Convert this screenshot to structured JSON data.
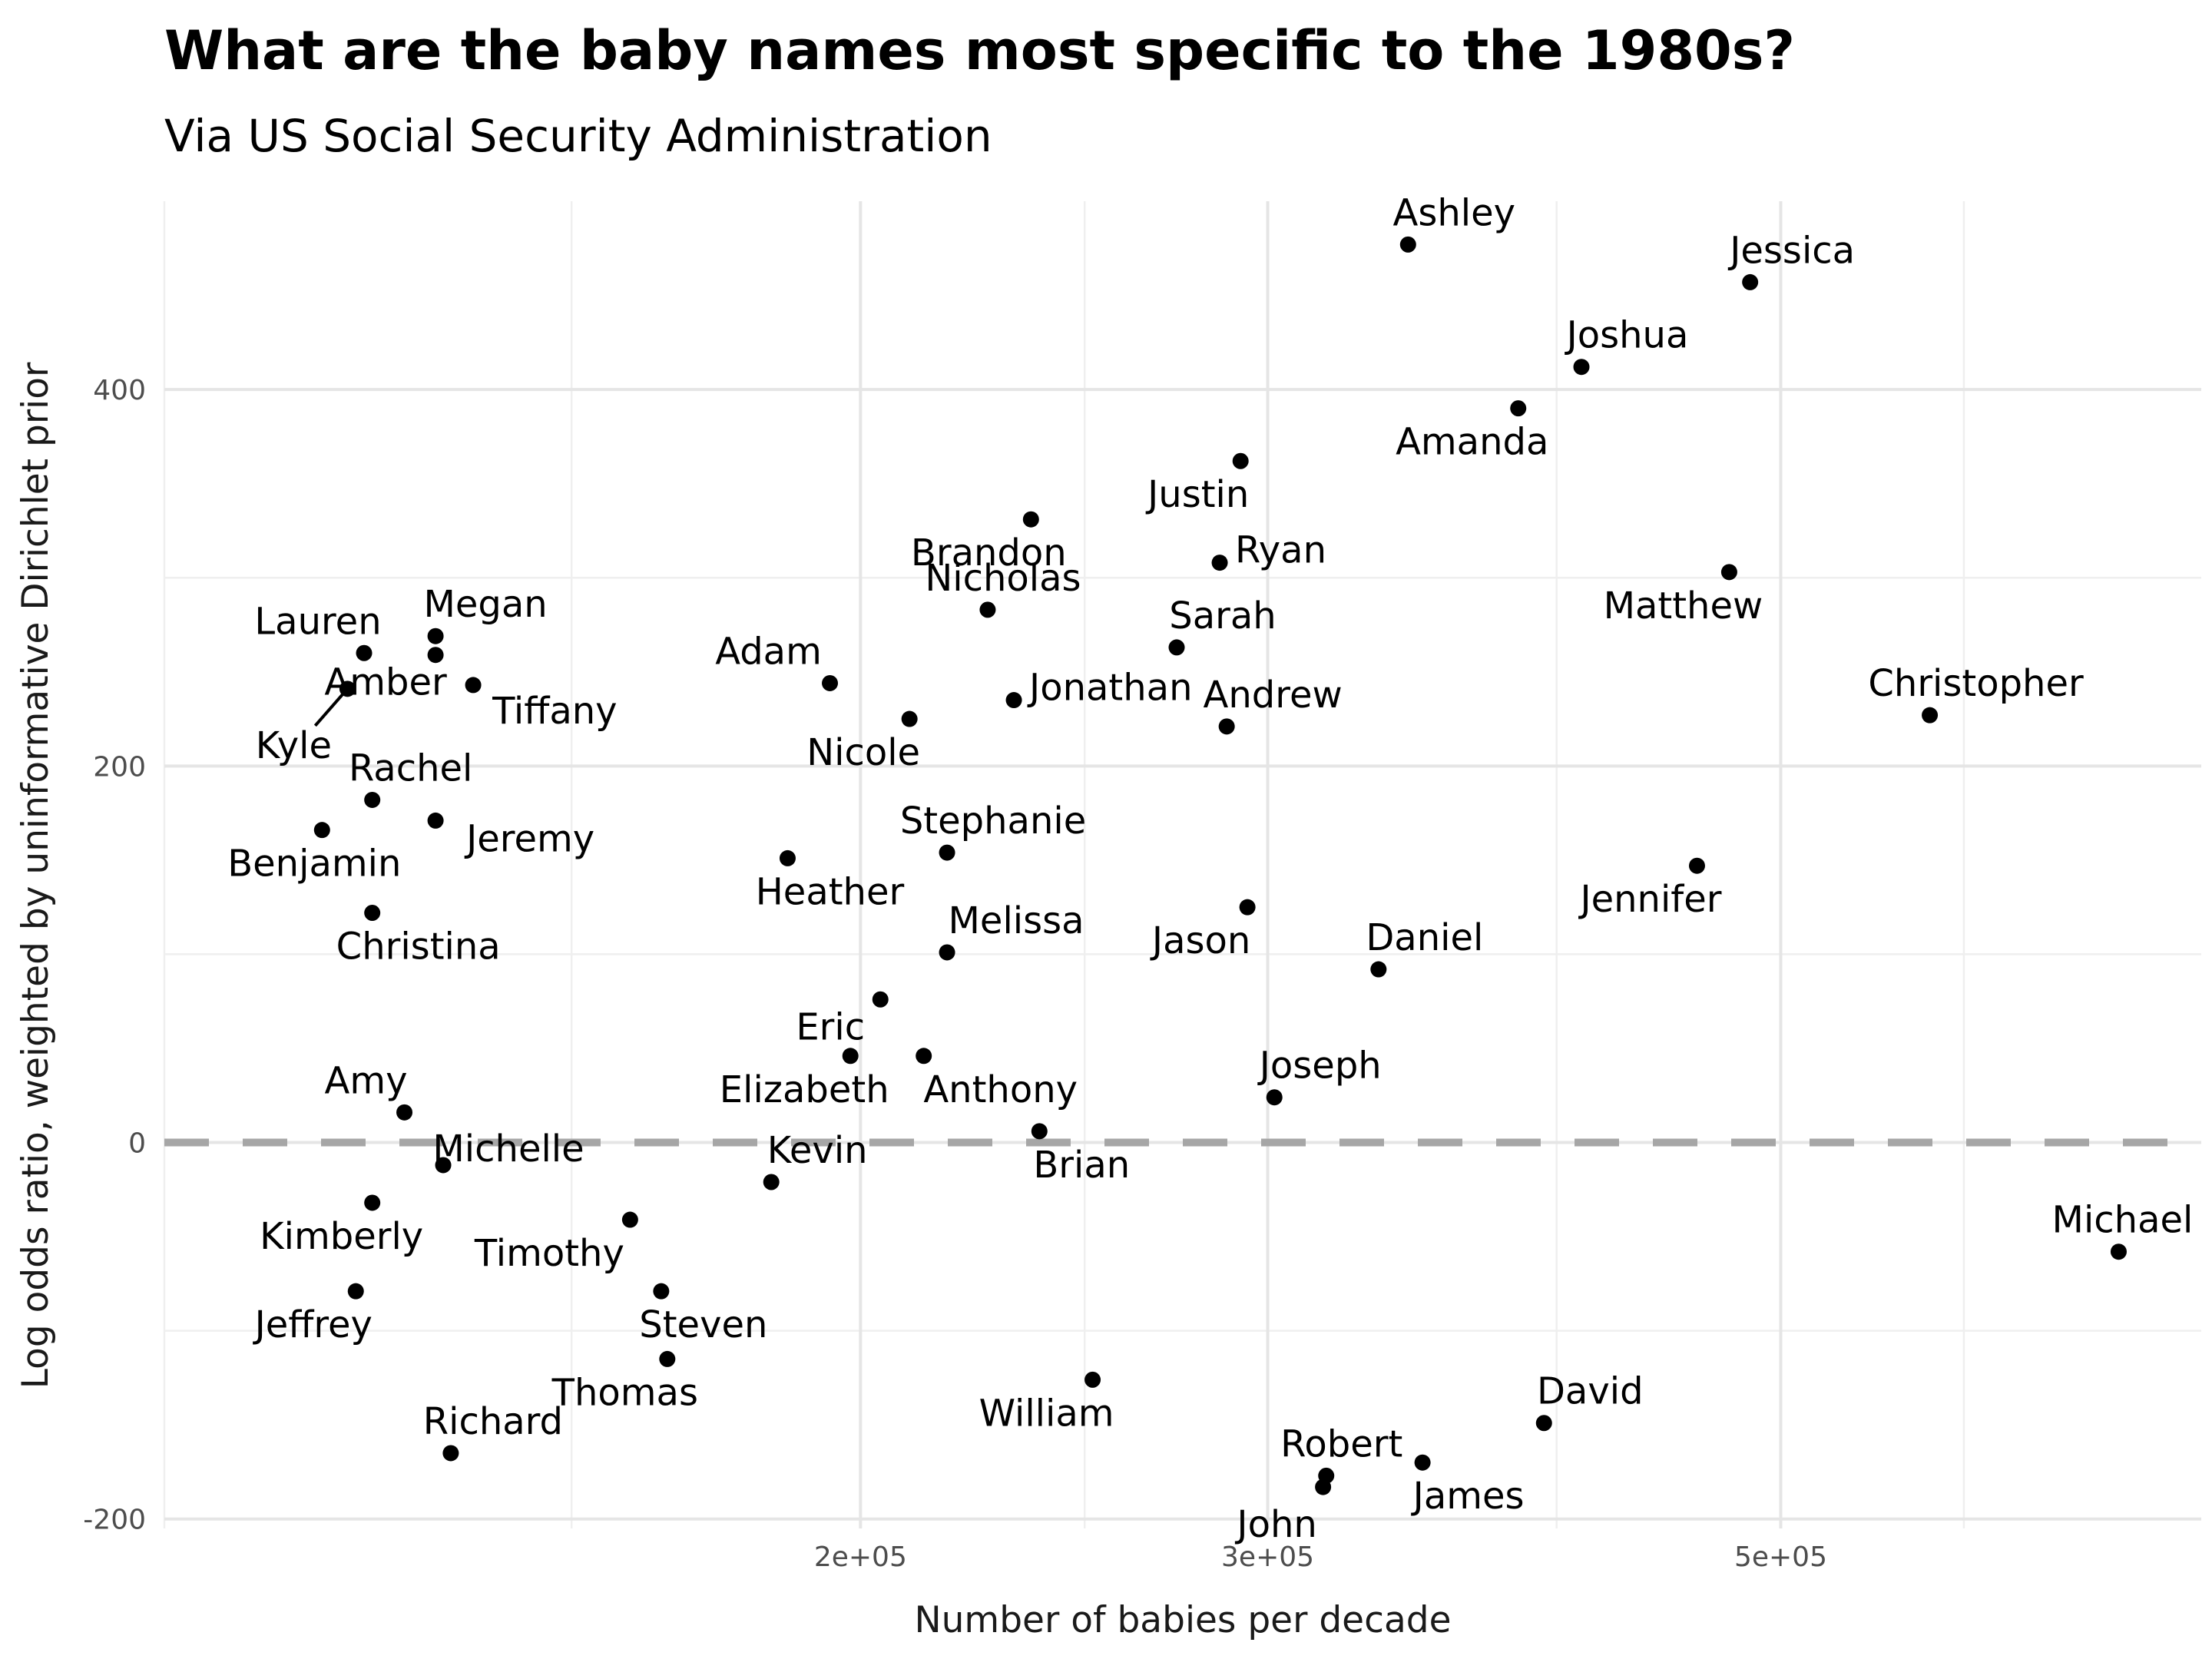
{
  "chart_data": {
    "type": "scatter",
    "title": "What are the baby names most specific to the 1980s?",
    "subtitle": "Via US Social Security Administration",
    "xlabel": "Number of babies per decade",
    "ylabel": "Log odds ratio, weighted by uninformative Dirichlet prior",
    "x_scale": "log10",
    "xlim": [
      100000,
      760000
    ],
    "ylim": [
      -205,
      500
    ],
    "x_ticks": [
      {
        "value": 200000,
        "label": "2e+05"
      },
      {
        "value": 300000,
        "label": "3e+05"
      },
      {
        "value": 500000,
        "label": "5e+05"
      }
    ],
    "y_ticks": [
      {
        "value": -200,
        "label": "-200"
      },
      {
        "value": 0,
        "label": "0"
      },
      {
        "value": 200,
        "label": "200"
      },
      {
        "value": 400,
        "label": "400"
      }
    ],
    "reference_line": {
      "y": 0,
      "style": "dashed",
      "color": "#a6a6a6"
    },
    "grid": true,
    "points": [
      {
        "name": "Ashley",
        "x": 345000,
        "y": 477
      },
      {
        "name": "Jessica",
        "x": 485000,
        "y": 457
      },
      {
        "name": "Joshua",
        "x": 410000,
        "y": 412
      },
      {
        "name": "Amanda",
        "x": 385000,
        "y": 390
      },
      {
        "name": "Justin",
        "x": 292000,
        "y": 362
      },
      {
        "name": "Brandon",
        "x": 237000,
        "y": 331
      },
      {
        "name": "Ryan",
        "x": 286000,
        "y": 308
      },
      {
        "name": "Matthew",
        "x": 475000,
        "y": 303
      },
      {
        "name": "Sarah",
        "x": 274000,
        "y": 263
      },
      {
        "name": "Lauren",
        "x": 122000,
        "y": 260
      },
      {
        "name": "Megan",
        "x": 131000,
        "y": 269
      },
      {
        "name": "Tiffany",
        "x": 136000,
        "y": 243
      },
      {
        "name": "Amber",
        "x": 131000,
        "y": 259
      },
      {
        "name": "Kyle",
        "x": 120000,
        "y": 241
      },
      {
        "name": "Adam",
        "x": 194000,
        "y": 244
      },
      {
        "name": "Nicholas",
        "x": 227000,
        "y": 283
      },
      {
        "name": "Jonathan",
        "x": 233000,
        "y": 235
      },
      {
        "name": "Nicole",
        "x": 210000,
        "y": 225
      },
      {
        "name": "Andrew",
        "x": 288000,
        "y": 221
      },
      {
        "name": "Christopher",
        "x": 580000,
        "y": 227
      },
      {
        "name": "Rachel",
        "x": 123000,
        "y": 182
      },
      {
        "name": "Jeremy",
        "x": 131000,
        "y": 171
      },
      {
        "name": "Benjamin",
        "x": 117000,
        "y": 166
      },
      {
        "name": "Stephanie",
        "x": 218000,
        "y": 154
      },
      {
        "name": "Heather",
        "x": 186000,
        "y": 151
      },
      {
        "name": "Jennifer",
        "x": 460000,
        "y": 147
      },
      {
        "name": "Christina",
        "x": 123000,
        "y": 122
      },
      {
        "name": "Jason",
        "x": 294000,
        "y": 125
      },
      {
        "name": "Melissa",
        "x": 218000,
        "y": 101
      },
      {
        "name": "Daniel",
        "x": 335000,
        "y": 92
      },
      {
        "name": "Eric",
        "x": 204000,
        "y": 76
      },
      {
        "name": "Elizabeth",
        "x": 198000,
        "y": 46
      },
      {
        "name": "Anthony",
        "x": 213000,
        "y": 46
      },
      {
        "name": "Joseph",
        "x": 302000,
        "y": 24
      },
      {
        "name": "Amy",
        "x": 127000,
        "y": 16
      },
      {
        "name": "Brian",
        "x": 239000,
        "y": 6
      },
      {
        "name": "Michelle",
        "x": 132000,
        "y": -12
      },
      {
        "name": "Kevin",
        "x": 183000,
        "y": -21
      },
      {
        "name": "Kimberly",
        "x": 123000,
        "y": -32
      },
      {
        "name": "Timothy",
        "x": 159000,
        "y": -41
      },
      {
        "name": "Jeffrey",
        "x": 121000,
        "y": -79
      },
      {
        "name": "Steven",
        "x": 164000,
        "y": -79
      },
      {
        "name": "Thomas",
        "x": 165000,
        "y": -115
      },
      {
        "name": "William",
        "x": 252000,
        "y": -126
      },
      {
        "name": "Richard",
        "x": 133000,
        "y": -165
      },
      {
        "name": "David",
        "x": 395000,
        "y": -149
      },
      {
        "name": "James",
        "x": 350000,
        "y": -170
      },
      {
        "name": "Robert",
        "x": 318000,
        "y": -177
      },
      {
        "name": "John",
        "x": 317000,
        "y": -183
      },
      {
        "name": "Michael",
        "x": 700000,
        "y": -58
      }
    ]
  }
}
